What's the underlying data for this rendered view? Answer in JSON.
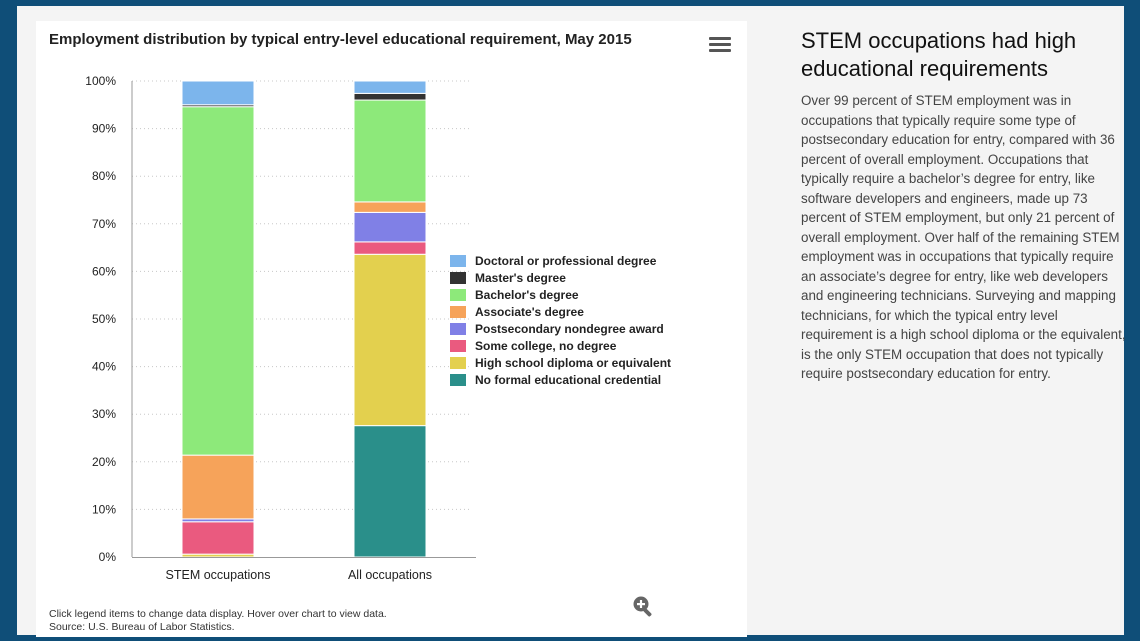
{
  "chart_data": {
    "type": "bar",
    "stacked": true,
    "title": "Employment distribution by typical entry-level educational requirement, May 2015",
    "categories": [
      "STEM occupations",
      "All occupations"
    ],
    "ylim": [
      0,
      100
    ],
    "y_ticks": [
      "0%",
      "10%",
      "20%",
      "30%",
      "40%",
      "50%",
      "60%",
      "70%",
      "80%",
      "90%",
      "100%"
    ],
    "grid": true,
    "legend_position": "right",
    "series": [
      {
        "name": "No formal educational credential",
        "color": "#2a8f8a",
        "values": [
          0.0,
          27.6
        ]
      },
      {
        "name": "High school diploma or equivalent",
        "color": "#e3d04e",
        "values": [
          0.6,
          36.0
        ]
      },
      {
        "name": "Some college, no degree",
        "color": "#ea5a7f",
        "values": [
          6.8,
          2.6
        ]
      },
      {
        "name": "Postsecondary nondegree award",
        "color": "#8080e6",
        "values": [
          0.6,
          6.2
        ]
      },
      {
        "name": "Associate's degree",
        "color": "#f6a35a",
        "values": [
          13.4,
          2.2
        ]
      },
      {
        "name": "Bachelor's degree",
        "color": "#8de97a",
        "values": [
          73.2,
          21.4
        ]
      },
      {
        "name": "Master's degree",
        "color": "#333333",
        "values": [
          0.4,
          1.4
        ]
      },
      {
        "name": "Doctoral or professional degree",
        "color": "#7cb5ec",
        "values": [
          5.0,
          2.6
        ]
      }
    ]
  },
  "chart_panel": {
    "footnote_line1": "Click legend items to change data display. Hover over chart to view data.",
    "footnote_line2": "Source: U.S. Bureau of Labor Statistics."
  },
  "legend_order": [
    "Doctoral or professional degree",
    "Master's degree",
    "Bachelor's degree",
    "Associate's degree",
    "Postsecondary nondegree award",
    "Some college, no degree",
    "High school diploma or equivalent",
    "No formal educational credential"
  ],
  "legend_colors": [
    "#7cb5ec",
    "#333333",
    "#8de97a",
    "#f6a35a",
    "#8080e6",
    "#ea5a7f",
    "#e3d04e",
    "#2a8f8a"
  ],
  "icons": {
    "menu": "hamburger-menu-icon",
    "zoom": "zoom-in-icon"
  },
  "side_panel": {
    "heading": "STEM occupations had high educational requirements",
    "body": "Over 99 percent of STEM employment was in occupations that typically require some type of postsecondary education for entry, compared with 36 percent of overall employment. Occupations that typically require a bachelor’s degree for entry, like software developers and engineers, made up 73 percent of STEM employment, but only 21 percent of overall employment. Over half of the remaining STEM employment was in occupations that typically require an associate’s degree for entry, like web developers and engineering technicians. Surveying and mapping technicians, for which the typical entry level requirement is a high school diploma or the equivalent, is the only STEM occupation that does not typically require postsecondary education for entry."
  }
}
